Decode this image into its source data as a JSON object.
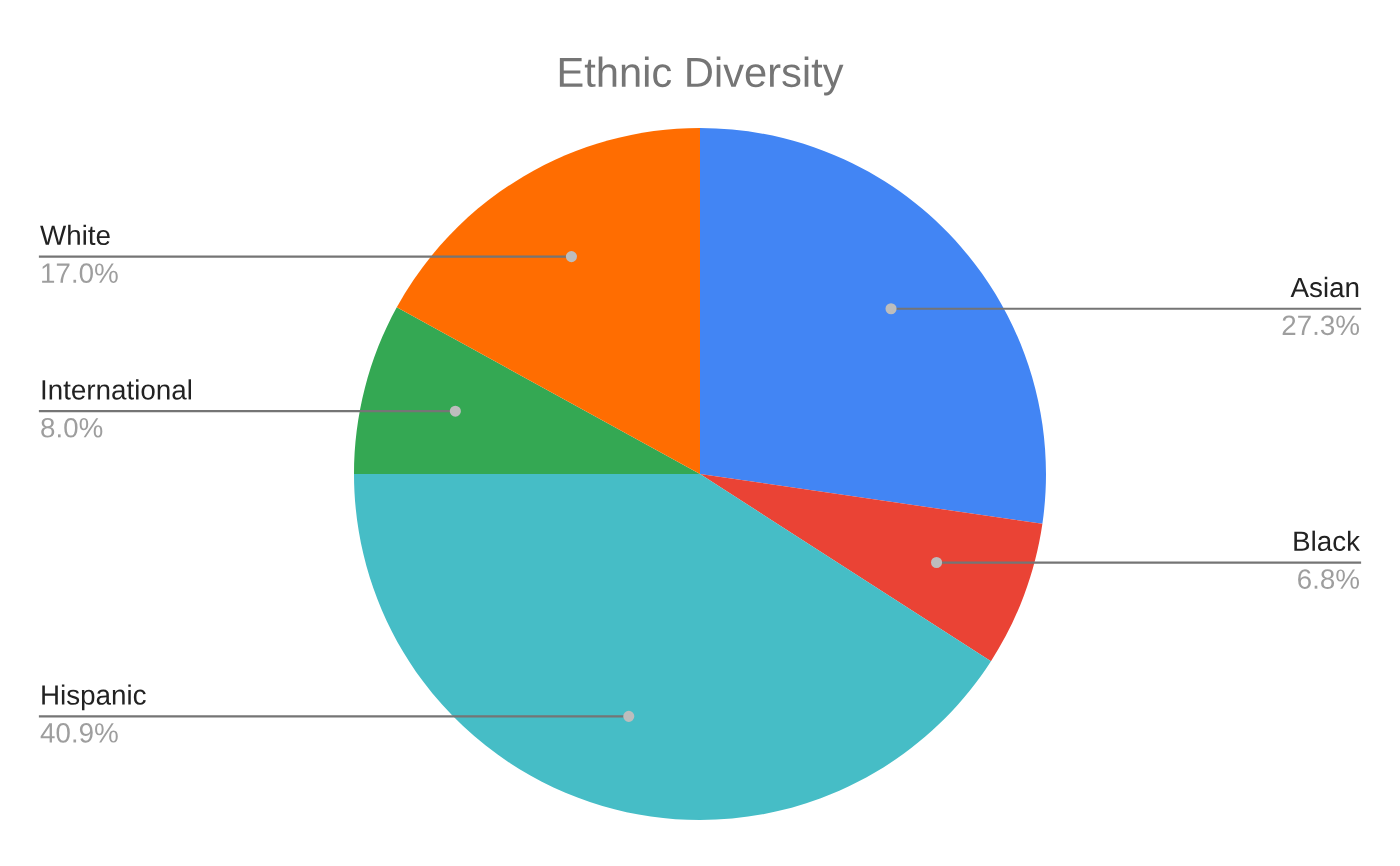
{
  "chart_data": {
    "type": "pie",
    "title": "Ethnic Diversity",
    "categories": [
      "Asian",
      "Black",
      "Hispanic",
      "International",
      "White"
    ],
    "values": [
      27.3,
      6.8,
      40.9,
      8.0,
      17.0
    ],
    "value_labels": [
      "27.3%",
      "6.8%",
      "40.9%",
      "8.0%",
      "17.0%"
    ],
    "colors": [
      "#4285f4",
      "#ea4335",
      "#46bdc6",
      "#34a853",
      "#ff6d01"
    ]
  }
}
